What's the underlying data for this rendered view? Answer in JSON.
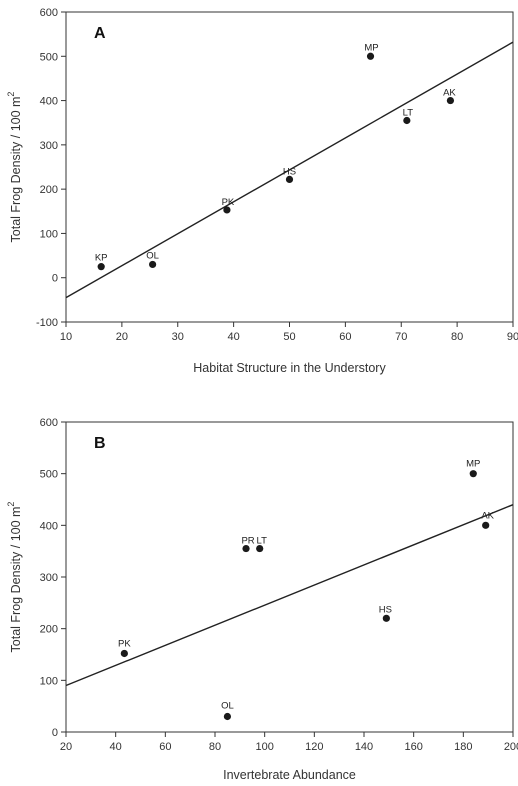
{
  "chart_data": [
    {
      "type": "scatter",
      "panel_label": "A",
      "xlabel": "Habitat Structure in the Understory",
      "ylabel_main": "Total Frog Density / 100 m",
      "ylabel_sup": "2",
      "xlim": [
        10,
        90
      ],
      "ylim": [
        -100,
        600
      ],
      "xticks": [
        10,
        20,
        30,
        40,
        50,
        60,
        70,
        80,
        90
      ],
      "yticks": [
        -100,
        0,
        100,
        200,
        300,
        400,
        500,
        600
      ],
      "points": [
        {
          "label": "KP",
          "x": 16.3,
          "y": 25
        },
        {
          "label": "OL",
          "x": 25.5,
          "y": 30
        },
        {
          "label": "PK",
          "x": 38.8,
          "y": 153
        },
        {
          "label": "HS",
          "x": 50.0,
          "y": 222
        },
        {
          "label": "MP",
          "x": 64.5,
          "y": 500
        },
        {
          "label": "LT",
          "x": 71.0,
          "y": 355
        },
        {
          "label": "AK",
          "x": 78.8,
          "y": 400
        }
      ],
      "trendline": {
        "x": [
          10,
          90
        ],
        "y": [
          -45,
          532
        ]
      }
    },
    {
      "type": "scatter",
      "panel_label": "B",
      "xlabel": "Invertebrate Abundance",
      "ylabel_main": "Total Frog Density / 100 m",
      "ylabel_sup": "2",
      "xlim": [
        20,
        200
      ],
      "ylim": [
        0,
        600
      ],
      "xticks": [
        20,
        40,
        60,
        80,
        100,
        120,
        140,
        160,
        180,
        200
      ],
      "yticks": [
        0,
        100,
        200,
        300,
        400,
        500,
        600
      ],
      "points": [
        {
          "label": "PK",
          "x": 43.5,
          "y": 152
        },
        {
          "label": "OL",
          "x": 85.0,
          "y": 30
        },
        {
          "label": "PR",
          "x": 92.5,
          "y": 355
        },
        {
          "label": "LT",
          "x": 98.0,
          "y": 355
        },
        {
          "label": "HS",
          "x": 149.0,
          "y": 220
        },
        {
          "label": "MP",
          "x": 184.0,
          "y": 500
        },
        {
          "label": "AK",
          "x": 189.0,
          "y": 400
        }
      ],
      "trendline": {
        "x": [
          20,
          200
        ],
        "y": [
          90,
          440
        ]
      }
    }
  ]
}
